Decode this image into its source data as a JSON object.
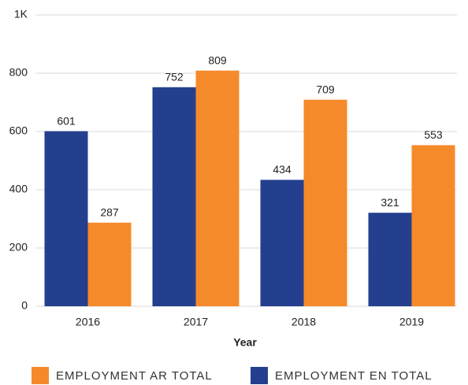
{
  "chart_data": {
    "type": "bar",
    "categories": [
      "2016",
      "2017",
      "2018",
      "2019"
    ],
    "series": [
      {
        "name": "EMPLOYMENT EN TOTAL",
        "color": "#253f8f",
        "values": [
          601,
          752,
          434,
          321
        ]
      },
      {
        "name": "EMPLOYMENT AR TOTAL",
        "color": "#f58a2a",
        "values": [
          287,
          809,
          709,
          553
        ]
      }
    ],
    "x_label": "Year",
    "ylim": [
      0,
      1000
    ],
    "yticks": [
      0,
      200,
      400,
      600,
      800,
      {
        "value": 1000,
        "label": "1K"
      }
    ],
    "grid": true
  }
}
